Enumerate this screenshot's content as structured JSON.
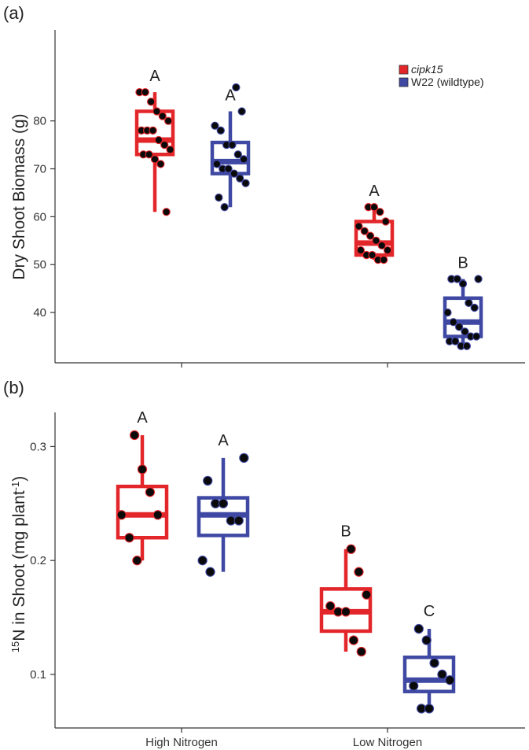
{
  "chart_data": [
    {
      "panel_label": "(a)",
      "type": "box",
      "ylabel": "Dry Shoot Biomass (g)",
      "ylim": [
        29.5,
        99
      ],
      "yticks": [
        40,
        50,
        60,
        70,
        80
      ],
      "categories": [
        "High Nitrogen",
        "Low Nitrogen"
      ],
      "legend": {
        "placement": "top-right",
        "entries": [
          {
            "label": "cipk15",
            "color": "#e3262a",
            "italic": true
          },
          {
            "label": "W22 (wildtype)",
            "color": "#3f48a3",
            "italic": false
          }
        ]
      },
      "boxes": [
        {
          "category": "High Nitrogen",
          "series": "cipk15",
          "color": "#e3262a",
          "letter": "A",
          "whisker_low": 61,
          "q1": 73,
          "median": 76,
          "q3": 82,
          "whisker_high": 86,
          "points": [
            86,
            86,
            84,
            82,
            81,
            80,
            78,
            78,
            78,
            76,
            75,
            74,
            73,
            73,
            72,
            71,
            61
          ]
        },
        {
          "category": "High Nitrogen",
          "series": "W22 (wildtype)",
          "color": "#3f48a3",
          "letter": "A",
          "whisker_low": 62,
          "q1": 69,
          "median": 71.5,
          "q3": 75.5,
          "whisker_high": 82,
          "points": [
            87,
            82,
            79,
            78,
            75,
            75,
            73,
            72,
            71,
            70,
            70,
            69,
            68,
            67,
            64,
            62
          ]
        },
        {
          "category": "Low Nitrogen",
          "series": "cipk15",
          "color": "#e3262a",
          "letter": "A",
          "whisker_low": 51,
          "q1": 52,
          "median": 54.5,
          "q3": 59,
          "whisker_high": 62,
          "points": [
            62,
            62,
            61,
            59,
            58,
            57,
            56,
            55,
            54,
            53,
            53,
            52,
            52,
            51,
            51
          ]
        },
        {
          "category": "Low Nitrogen",
          "series": "W22 (wildtype)",
          "color": "#3f48a3",
          "letter": "B",
          "whisker_low": 33,
          "q1": 35,
          "median": 38,
          "q3": 43,
          "whisker_high": 47,
          "points": [
            47,
            47,
            47,
            46,
            42,
            41,
            40,
            38,
            37,
            36,
            35,
            35,
            34,
            34,
            33,
            33
          ]
        }
      ]
    },
    {
      "panel_label": "(b)",
      "type": "box",
      "ylabel_sup": "15",
      "ylabel_main": "N in Shoot (mg plant",
      "ylabel_sup2": "-1",
      "ylabel_end": ")",
      "ylim": [
        0.053,
        0.33
      ],
      "yticks": [
        0.1,
        0.2,
        0.3
      ],
      "ytick_labels": [
        "0.1",
        "0.2",
        "0.3"
      ],
      "categories": [
        "High Nitrogen",
        "Low Nitrogen"
      ],
      "boxes": [
        {
          "category": "High Nitrogen",
          "series": "cipk15",
          "color": "#e3262a",
          "letter": "A",
          "whisker_low": 0.2,
          "q1": 0.22,
          "median": 0.24,
          "q3": 0.265,
          "whisker_high": 0.31,
          "points": [
            0.31,
            0.28,
            0.26,
            0.24,
            0.24,
            0.22,
            0.2
          ]
        },
        {
          "category": "High Nitrogen",
          "series": "W22 (wildtype)",
          "color": "#3f48a3",
          "letter": "A",
          "whisker_low": 0.19,
          "q1": 0.222,
          "median": 0.24,
          "q3": 0.255,
          "whisker_high": 0.29,
          "points": [
            0.29,
            0.27,
            0.25,
            0.25,
            0.235,
            0.235,
            0.2,
            0.19
          ]
        },
        {
          "category": "Low Nitrogen",
          "series": "cipk15",
          "color": "#e3262a",
          "letter": "B",
          "whisker_low": 0.12,
          "q1": 0.138,
          "median": 0.155,
          "q3": 0.175,
          "whisker_high": 0.21,
          "points": [
            0.21,
            0.19,
            0.17,
            0.16,
            0.155,
            0.155,
            0.13,
            0.12
          ]
        },
        {
          "category": "Low Nitrogen",
          "series": "W22 (wildtype)",
          "color": "#3f48a3",
          "letter": "C",
          "whisker_low": 0.07,
          "q1": 0.085,
          "median": 0.095,
          "q3": 0.115,
          "whisker_high": 0.14,
          "points": [
            0.14,
            0.13,
            0.11,
            0.1,
            0.095,
            0.09,
            0.07,
            0.07
          ]
        }
      ]
    }
  ]
}
